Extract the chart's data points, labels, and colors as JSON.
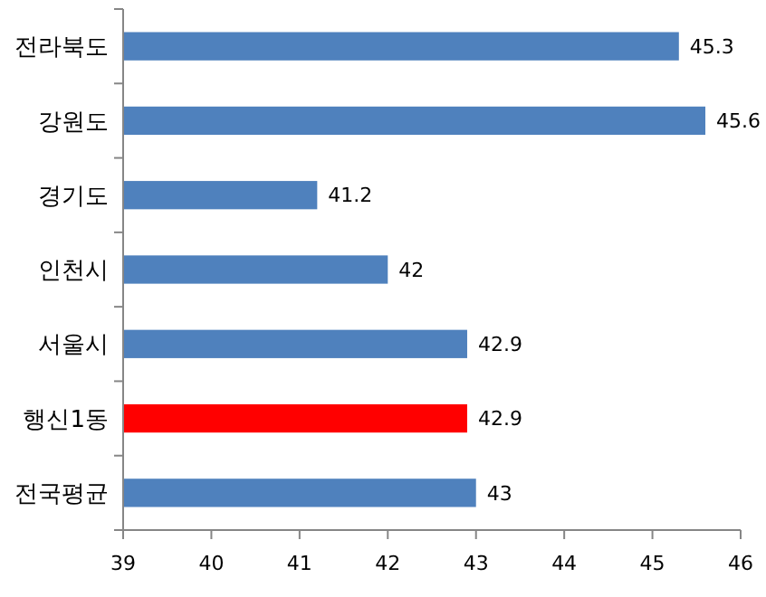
{
  "chart_data": {
    "type": "bar",
    "orientation": "horizontal",
    "categories": [
      "전라북도",
      "강원도",
      "경기도",
      "인천시",
      "서울시",
      "행신1동",
      "전국평균"
    ],
    "values": [
      45.3,
      45.6,
      41.2,
      42,
      42.9,
      42.9,
      43
    ],
    "colors": [
      "#4f81bd",
      "#4f81bd",
      "#4f81bd",
      "#4f81bd",
      "#4f81bd",
      "#ff0000",
      "#4f81bd"
    ],
    "xlim": [
      39,
      46
    ],
    "xticks": [
      39,
      40,
      41,
      42,
      43,
      44,
      45,
      46
    ],
    "data_labels": true,
    "grid": false
  }
}
